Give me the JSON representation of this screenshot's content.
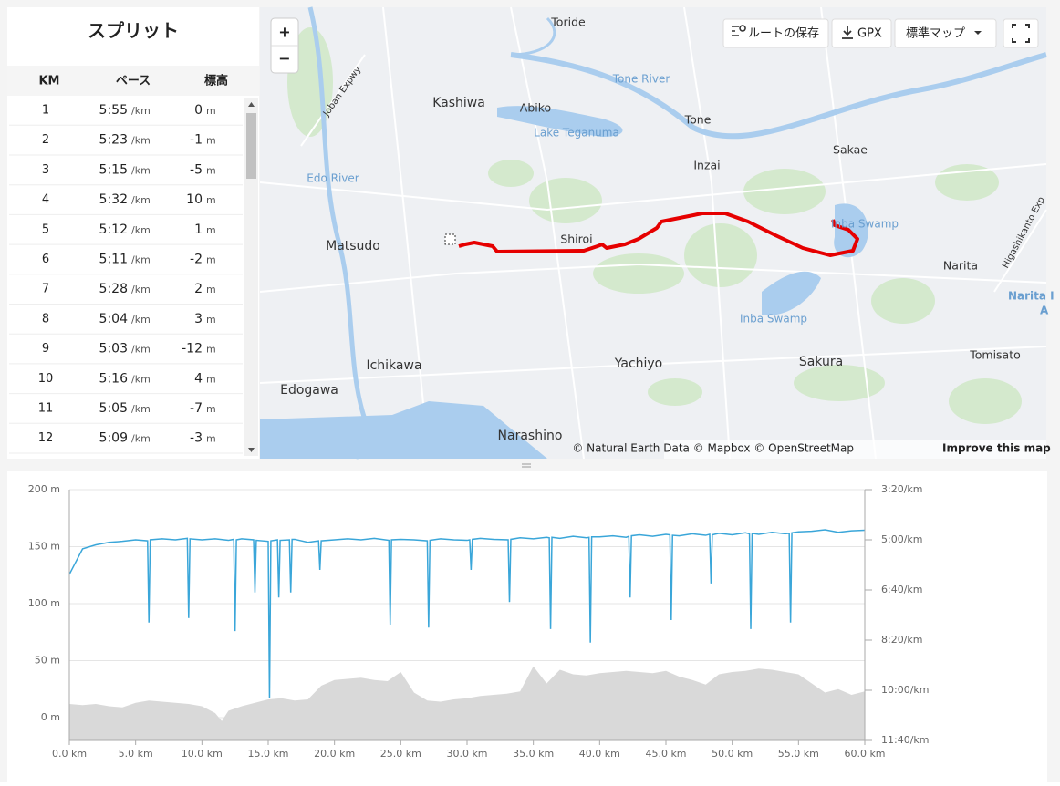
{
  "splits": {
    "title": "スプリット",
    "headers": [
      "KM",
      "ペース",
      "標高"
    ],
    "pace_unit": "/km",
    "elevation_unit": "m",
    "rows": [
      {
        "km": 1,
        "pace": "5:55",
        "elevation": 0
      },
      {
        "km": 2,
        "pace": "5:23",
        "elevation": -1
      },
      {
        "km": 3,
        "pace": "5:15",
        "elevation": -5
      },
      {
        "km": 4,
        "pace": "5:32",
        "elevation": 10
      },
      {
        "km": 5,
        "pace": "5:12",
        "elevation": 1
      },
      {
        "km": 6,
        "pace": "5:11",
        "elevation": -2
      },
      {
        "km": 7,
        "pace": "5:28",
        "elevation": 2
      },
      {
        "km": 8,
        "pace": "5:04",
        "elevation": 3
      },
      {
        "km": 9,
        "pace": "5:03",
        "elevation": -12
      },
      {
        "km": 10,
        "pace": "5:16",
        "elevation": 4
      },
      {
        "km": 11,
        "pace": "5:05",
        "elevation": -7
      },
      {
        "km": 12,
        "pace": "5:09",
        "elevation": -3
      }
    ]
  },
  "map": {
    "controls": {
      "zoom_in": "+",
      "zoom_out": "−",
      "save_route": "ルートの保存",
      "gpx": "GPX",
      "map_style": "標準マップ"
    },
    "labels": [
      "Toride",
      "Kashiwa",
      "Abiko",
      "Tone River",
      "Lake Teganuma",
      "Tone",
      "Sakae",
      "Inzai",
      "Edo River",
      "Joban Expwy",
      "Matsudo",
      "Shiroi",
      "Inba Swamp",
      "Narita",
      "Higashikanto Exp",
      "Narita I",
      "A",
      "Inba Swamp",
      "Ichikawa",
      "Yachiyo",
      "Sakura",
      "Tomisato",
      "Edogawa",
      "Narashino"
    ],
    "attribution": "© Natural Earth Data © Mapbox © OpenStreetMap",
    "improve": "Improve this map"
  },
  "chart_data": {
    "type": "line",
    "grid": true,
    "xlim": [
      0,
      60
    ],
    "xticks": [
      {
        "value": 0,
        "label": "0.0 km"
      },
      {
        "value": 5,
        "label": "5.0 km"
      },
      {
        "value": 10,
        "label": "10.0 km"
      },
      {
        "value": 15,
        "label": "15.0 km"
      },
      {
        "value": 20,
        "label": "20.0 km"
      },
      {
        "value": 25,
        "label": "25.0 km"
      },
      {
        "value": 30,
        "label": "30.0 km"
      },
      {
        "value": 35,
        "label": "35.0 km"
      },
      {
        "value": 40,
        "label": "40.0 km"
      },
      {
        "value": 45,
        "label": "45.0 km"
      },
      {
        "value": 50,
        "label": "50.0 km"
      },
      {
        "value": 55,
        "label": "55.0 km"
      },
      {
        "value": 60,
        "label": "60.0 km"
      }
    ],
    "ylim": [
      -20,
      200
    ],
    "yticks": [
      {
        "value": 0,
        "label": "0 m"
      },
      {
        "value": 50,
        "label": "50 m"
      },
      {
        "value": 100,
        "label": "100 m"
      },
      {
        "value": 150,
        "label": "150 m"
      },
      {
        "value": 200,
        "label": "200 m"
      }
    ],
    "y2lim": [
      700,
      200
    ],
    "y2ticks": [
      {
        "value": 200,
        "label": "3:20/km"
      },
      {
        "value": 300,
        "label": "5:00/km"
      },
      {
        "value": 400,
        "label": "6:40/km"
      },
      {
        "value": 500,
        "label": "8:20/km"
      },
      {
        "value": 600,
        "label": "10:00/km"
      },
      {
        "value": 700,
        "label": "11:40/km"
      }
    ],
    "series": [
      {
        "type": "area",
        "color": "#d9d9d9",
        "x": [
          0,
          1,
          2,
          3,
          4,
          5,
          6,
          7,
          8,
          9,
          10,
          11,
          11.5,
          12,
          13,
          14,
          15,
          16,
          17,
          18,
          19,
          20,
          21,
          22,
          23,
          24,
          25,
          26,
          27,
          28,
          29,
          30,
          31,
          32,
          33,
          34,
          35,
          36,
          37,
          38,
          39,
          40,
          41,
          42,
          43,
          44,
          45,
          46,
          47,
          48,
          49,
          50,
          51,
          52,
          53,
          54,
          55,
          56,
          57,
          58,
          59,
          60
        ],
        "values": [
          12,
          11,
          12,
          10,
          9,
          13,
          15,
          14,
          13,
          12,
          10,
          4,
          -3,
          6,
          10,
          13,
          16,
          17,
          15,
          16,
          28,
          33,
          34,
          35,
          33,
          32,
          40,
          22,
          15,
          14,
          16,
          17,
          19,
          20,
          21,
          23,
          45,
          30,
          42,
          38,
          37,
          39,
          40,
          41,
          40,
          39,
          41,
          36,
          33,
          29,
          38,
          40,
          41,
          43,
          42,
          40,
          38,
          30,
          22,
          25,
          20,
          23
        ]
      },
      {
        "type": "line",
        "color": "#3aa6d9",
        "axis": "y2",
        "x": [
          0,
          1,
          2,
          3,
          4,
          5,
          5.9,
          6,
          6.1,
          7,
          8,
          8.9,
          9,
          9.1,
          10,
          11,
          12,
          12.4,
          12.5,
          12.6,
          13,
          13.9,
          14,
          14.1,
          15,
          15.1,
          15.2,
          15.7,
          15.8,
          15.9,
          16.6,
          16.7,
          16.8,
          17,
          18,
          18.8,
          18.9,
          19,
          20,
          21,
          22,
          23,
          24.1,
          24.2,
          24.3,
          25,
          26,
          27,
          27.1,
          27.2,
          28,
          29,
          30,
          30.2,
          30.3,
          30.4,
          31,
          32,
          33.1,
          33.2,
          33.3,
          34,
          35,
          36,
          36.2,
          36.3,
          36.4,
          37,
          38,
          39,
          39.2,
          39.3,
          39.4,
          40,
          41,
          42,
          42.2,
          42.3,
          42.4,
          43,
          44,
          45,
          45.3,
          45.4,
          45.5,
          46,
          47,
          48,
          48.3,
          48.4,
          48.5,
          49,
          50,
          51,
          51.3,
          51.4,
          51.5,
          52,
          53,
          54,
          54.3,
          54.4,
          54.5,
          55,
          56,
          57,
          58,
          59,
          60
        ],
        "values": [
          369,
          318,
          310,
          305,
          303,
          300,
          302,
          465,
          300,
          298,
          300,
          297,
          456,
          298,
          300,
          298,
          301,
          299,
          482,
          300,
          298,
          300,
          405,
          301,
          303,
          615,
          302,
          300,
          415,
          301,
          300,
          405,
          299,
          299,
          305,
          302,
          360,
          302,
          300,
          298,
          300,
          297,
          301,
          469,
          300,
          299,
          300,
          302,
          475,
          301,
          298,
          300,
          301,
          300,
          360,
          299,
          297,
          299,
          300,
          424,
          299,
          296,
          298,
          295,
          296,
          478,
          295,
          297,
          293,
          296,
          295,
          505,
          294,
          294,
          292,
          295,
          293,
          415,
          292,
          290,
          293,
          289,
          290,
          460,
          291,
          292,
          288,
          291,
          289,
          387,
          290,
          287,
          290,
          286,
          288,
          478,
          287,
          289,
          285,
          288,
          287,
          465,
          286,
          284,
          283,
          280,
          285,
          282,
          281
        ]
      }
    ]
  }
}
